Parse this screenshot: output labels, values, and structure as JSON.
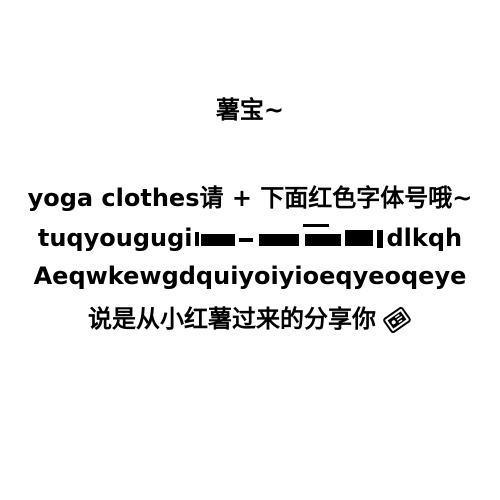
{
  "greeting": "薯宝~",
  "lines": [
    "yoga clothes请 + 下面红色字体号哦~",
    "tuqyougugi",
    "dlkqh",
    "Aeqwkewgdquiyoiyioeqyeoqeye",
    "说是从小红薯过来的分享你"
  ],
  "icons": {
    "share_icon": "share-tag-icon"
  }
}
